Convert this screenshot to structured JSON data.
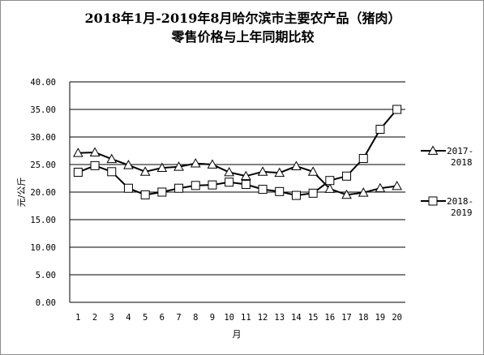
{
  "chart_data": {
    "type": "line",
    "title_line1": "2018年1月-2019年8月哈尔滨市主要农产品（猪肉）",
    "title_line2": "零售价格与上年同期比较",
    "xlabel": "月",
    "ylabel": "元/公斤",
    "ylim": [
      0,
      40
    ],
    "y_ticks": [
      "0.00",
      "5.00",
      "10.00",
      "15.00",
      "20.00",
      "25.00",
      "30.00",
      "35.00",
      "40.00"
    ],
    "x": [
      "1",
      "2",
      "3",
      "4",
      "5",
      "6",
      "7",
      "8",
      "9",
      "10",
      "11",
      "12",
      "13",
      "14",
      "15",
      "16",
      "17",
      "18",
      "19",
      "20"
    ],
    "grid": "horizontal",
    "legend_position": "right",
    "series": [
      {
        "name": "2017-2018",
        "name_line1": "2017-",
        "name_line2": "2018",
        "marker": "triangle",
        "color": "#000000",
        "values": [
          27.1,
          27.2,
          26.0,
          24.9,
          23.7,
          24.4,
          24.6,
          25.2,
          25.0,
          23.6,
          22.9,
          23.7,
          23.5,
          24.7,
          23.7,
          20.6,
          19.5,
          19.9,
          20.7,
          21.1
        ]
      },
      {
        "name": "2018-2019",
        "name_line1": "2018-",
        "name_line2": "2019",
        "marker": "square",
        "color": "#000000",
        "values": [
          23.6,
          24.8,
          23.7,
          20.7,
          19.5,
          20.0,
          20.7,
          21.2,
          21.3,
          21.8,
          21.4,
          20.5,
          20.1,
          19.4,
          19.8,
          22.1,
          22.9,
          26.1,
          31.4,
          35.0
        ]
      }
    ]
  }
}
